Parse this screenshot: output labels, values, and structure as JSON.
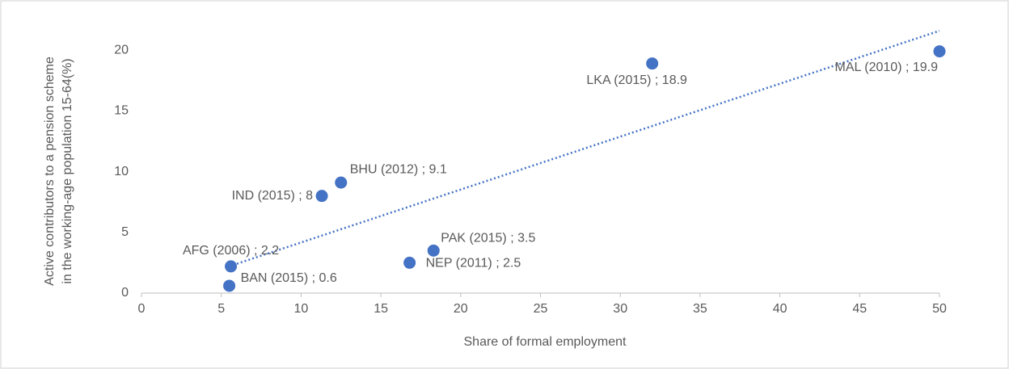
{
  "chart_data": {
    "type": "scatter",
    "ylabel": [
      "Active contributors to a pension scheme",
      "in the working-age population 15-64(%)"
    ],
    "xlabel": "Share of formal employment",
    "labels": [
      "AFG (2006) ; 2.2",
      "BAN (2015) ; 0.6",
      "IND (2015) ; 8",
      "BHU (2012) ; 9.1",
      "NEP (2011) ; 2.5",
      "PAK (2015) ; 3.5",
      "LKA (2015) ; 18.9",
      "MAL (2010) ; 19.9"
    ],
    "x": [
      5.6,
      5.5,
      11.3,
      12.5,
      16.8,
      18.3,
      32.0,
      50.0
    ],
    "values": [
      2.2,
      0.6,
      8,
      9.1,
      2.5,
      3.5,
      18.9,
      19.9
    ],
    "color": "#4472c4",
    "trendline": true,
    "xlim": [
      0,
      50
    ],
    "xticks": [
      0,
      5,
      10,
      15,
      20,
      25,
      30,
      35,
      40,
      45,
      50
    ],
    "ylim": [
      0,
      22
    ],
    "yticks": [
      0,
      5,
      10,
      15,
      20
    ],
    "grid": false
  }
}
